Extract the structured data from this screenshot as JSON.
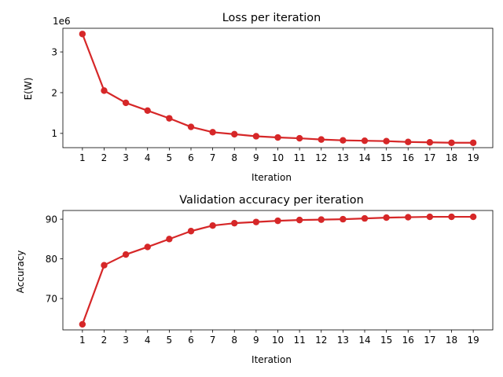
{
  "chart_data": [
    {
      "type": "line",
      "title": "Loss per iteration",
      "xlabel": "Iteration",
      "ylabel": "E(W)",
      "offset_label": "1e6",
      "x": [
        1,
        2,
        3,
        4,
        5,
        6,
        7,
        8,
        9,
        10,
        11,
        12,
        13,
        14,
        15,
        16,
        17,
        18,
        19
      ],
      "y_ticks": [
        1,
        2,
        3
      ],
      "ylim": [
        0.65,
        3.58
      ],
      "grid": false,
      "legend": "none",
      "color": "#d62728",
      "series": [
        {
          "values": [
            3.44,
            2.05,
            1.75,
            1.56,
            1.37,
            1.16,
            1.03,
            0.98,
            0.93,
            0.9,
            0.88,
            0.85,
            0.83,
            0.82,
            0.81,
            0.79,
            0.78,
            0.77,
            0.77
          ]
        }
      ]
    },
    {
      "type": "line",
      "title": "Validation accuracy per iteration",
      "xlabel": "Iteration",
      "ylabel": "Accuracy",
      "x": [
        1,
        2,
        3,
        4,
        5,
        6,
        7,
        8,
        9,
        10,
        11,
        12,
        13,
        14,
        15,
        16,
        17,
        18,
        19
      ],
      "y_ticks": [
        70,
        80,
        90
      ],
      "ylim": [
        62.1,
        92.2
      ],
      "grid": false,
      "legend": "none",
      "color": "#d62728",
      "series": [
        {
          "values": [
            63.5,
            78.4,
            81.1,
            83.0,
            85.0,
            87.0,
            88.4,
            89.0,
            89.3,
            89.6,
            89.8,
            89.9,
            90.0,
            90.2,
            90.4,
            90.5,
            90.6,
            90.6,
            90.6
          ]
        }
      ]
    }
  ]
}
